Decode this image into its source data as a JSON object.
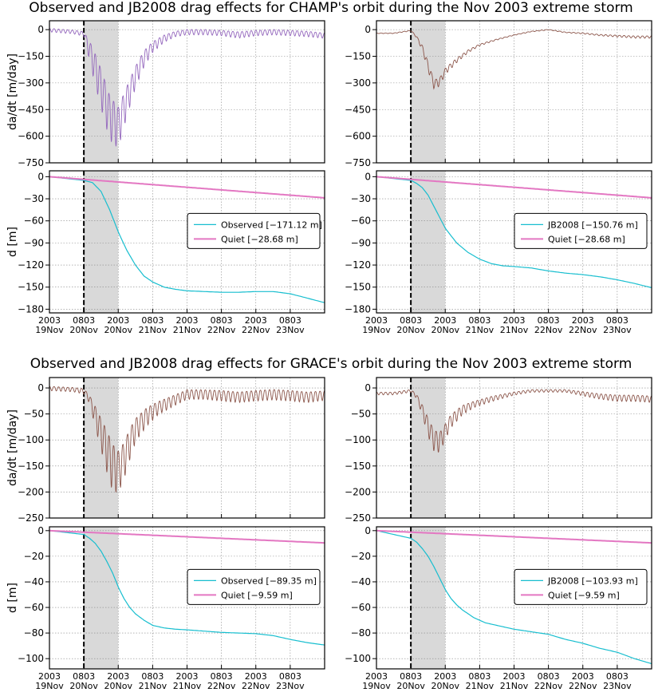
{
  "titles": {
    "top": "Observed and JB2008 drag effects for CHAMP's orbit during the Nov 2003 extreme storm",
    "bottom": "Observed and JB2008 drag effects for GRACE's orbit during the Nov 2003 extreme storm"
  },
  "ylabels": {
    "rate": "da/dt [m/day]",
    "dist": "d [m]"
  },
  "xticks": [
    {
      "l1": "2003",
      "l2": "19Nov"
    },
    {
      "l1": "0803",
      "l2": "20Nov"
    },
    {
      "l1": "2003",
      "l2": "20Nov"
    },
    {
      "l1": "0803",
      "l2": "21Nov"
    },
    {
      "l1": "2003",
      "l2": "21Nov"
    },
    {
      "l1": "0803",
      "l2": "22Nov"
    },
    {
      "l1": "2003",
      "l2": "22Nov"
    },
    {
      "l1": "0803",
      "l2": "23Nov"
    }
  ],
  "colors": {
    "observed_champ": "#9467bd",
    "model_rate": "#8c564b",
    "observed_grace": "#8c564b",
    "cyan": "#17becf",
    "quiet": "#e377c2",
    "shade": "#d9d9d9"
  },
  "chart_data": [
    {
      "id": "champ-obs-rate",
      "type": "line",
      "satellite": "CHAMP",
      "source": "Observed",
      "ylabel": "da/dt [m/day]",
      "ylim": [
        -750,
        50
      ],
      "yticks": [
        0,
        -150,
        -300,
        -450,
        -600,
        -750
      ],
      "x_hours": [
        0,
        4,
        8,
        12,
        15,
        18,
        21,
        24,
        27,
        30,
        33,
        36,
        40,
        44,
        48,
        54,
        60,
        66,
        72,
        78,
        84,
        90,
        96
      ],
      "y": [
        0,
        -5,
        -10,
        -20,
        -150,
        -300,
        -460,
        -520,
        -380,
        -250,
        -150,
        -90,
        -45,
        -20,
        -10,
        -10,
        -15,
        -25,
        -15,
        -10,
        -15,
        -20,
        -30
      ],
      "amp": [
        20,
        20,
        20,
        25,
        150,
        220,
        250,
        230,
        170,
        120,
        90,
        60,
        40,
        30,
        30,
        30,
        30,
        35,
        30,
        30,
        30,
        30,
        30
      ],
      "annotation": "Storm onset 0803 20Nov (dashed line), shaded 0803-2003 20Nov"
    },
    {
      "id": "champ-jb-rate",
      "type": "line",
      "satellite": "CHAMP",
      "source": "JB2008",
      "ylabel": "da/dt [m/day]",
      "ylim": [
        -750,
        50
      ],
      "yticks": [
        0,
        -150,
        -300,
        -450,
        -600,
        -750
      ],
      "x_hours": [
        0,
        6,
        12,
        14,
        16,
        18,
        20,
        22,
        24,
        28,
        32,
        36,
        42,
        48,
        54,
        60,
        66,
        72,
        78,
        84,
        90,
        96
      ],
      "y": [
        -20,
        -20,
        -5,
        -40,
        -100,
        -200,
        -300,
        -290,
        -230,
        -170,
        -120,
        -85,
        -55,
        -30,
        -10,
        0,
        -15,
        -20,
        -30,
        -35,
        -40,
        -40
      ],
      "amp": [
        3,
        3,
        5,
        10,
        30,
        50,
        50,
        45,
        35,
        25,
        15,
        10,
        6,
        4,
        4,
        4,
        4,
        6,
        8,
        10,
        12,
        12
      ]
    },
    {
      "id": "champ-obs-dist",
      "type": "line",
      "satellite": "CHAMP",
      "ylabel": "d [m]",
      "ylim": [
        -185,
        8
      ],
      "yticks": [
        0,
        -30,
        -60,
        -90,
        -120,
        -150,
        -180
      ],
      "series": [
        {
          "name": "Observed [−171.12 m]",
          "x_hours": [
            0,
            12,
            15,
            18,
            21,
            24,
            27,
            30,
            33,
            36,
            40,
            44,
            48,
            60,
            66,
            72,
            78,
            84,
            90,
            96
          ],
          "values": [
            0,
            -5,
            -8,
            -20,
            -45,
            -75,
            -100,
            -120,
            -135,
            -143,
            -150,
            -153,
            -155,
            -157,
            -157,
            -156,
            -156,
            -159,
            -165,
            -171.12
          ]
        },
        {
          "name": "Quiet [−28.68 m]",
          "x_hours": [
            0,
            96
          ],
          "values": [
            0,
            -28.68
          ]
        }
      ]
    },
    {
      "id": "champ-jb-dist",
      "type": "line",
      "satellite": "CHAMP",
      "ylabel": "d [m]",
      "ylim": [
        -185,
        8
      ],
      "yticks": [
        0,
        -30,
        -60,
        -90,
        -120,
        -150,
        -180
      ],
      "series": [
        {
          "name": "JB2008 [−150.76 m]",
          "x_hours": [
            0,
            12,
            14,
            16,
            18,
            20,
            22,
            24,
            28,
            32,
            36,
            40,
            44,
            48,
            54,
            60,
            66,
            72,
            78,
            84,
            90,
            96
          ],
          "values": [
            0,
            -5,
            -9,
            -15,
            -25,
            -40,
            -55,
            -70,
            -90,
            -103,
            -112,
            -118,
            -121,
            -122,
            -124,
            -128,
            -131,
            -133,
            -136,
            -140,
            -145,
            -150.76
          ]
        },
        {
          "name": "Quiet [−28.68 m]",
          "x_hours": [
            0,
            96
          ],
          "values": [
            0,
            -28.68
          ]
        }
      ]
    },
    {
      "id": "grace-obs-rate",
      "type": "line",
      "satellite": "GRACE",
      "source": "Observed",
      "ylabel": "da/dt [m/day]",
      "ylim": [
        -250,
        20
      ],
      "yticks": [
        0,
        -50,
        -100,
        -150,
        -200,
        -250
      ],
      "x_hours": [
        0,
        8,
        12,
        14,
        16,
        18,
        20,
        22,
        24,
        26,
        28,
        30,
        34,
        38,
        44,
        48,
        54,
        60,
        66,
        72,
        78,
        84,
        90,
        96
      ],
      "y": [
        0,
        -2,
        -5,
        -20,
        -50,
        -80,
        -110,
        -140,
        -150,
        -130,
        -100,
        -75,
        -50,
        -35,
        -20,
        -10,
        -10,
        -12,
        -15,
        -12,
        -10,
        -12,
        -15,
        -12
      ],
      "amp": [
        8,
        8,
        10,
        15,
        40,
        60,
        80,
        90,
        80,
        70,
        60,
        45,
        35,
        25,
        20,
        18,
        18,
        20,
        20,
        20,
        20,
        20,
        20,
        18
      ]
    },
    {
      "id": "grace-jb-rate",
      "type": "line",
      "satellite": "GRACE",
      "source": "JB2008",
      "ylabel": "da/dt [m/day]",
      "ylim": [
        -250,
        20
      ],
      "yticks": [
        0,
        -50,
        -100,
        -150,
        -200,
        -250
      ],
      "x_hours": [
        0,
        6,
        12,
        14,
        16,
        18,
        20,
        22,
        24,
        26,
        30,
        34,
        40,
        48,
        54,
        60,
        66,
        72,
        78,
        84,
        90,
        96
      ],
      "y": [
        -10,
        -10,
        -5,
        -15,
        -40,
        -70,
        -95,
        -100,
        -80,
        -60,
        -40,
        -30,
        -20,
        -10,
        -5,
        -5,
        -5,
        -10,
        -15,
        -18,
        -18,
        -20
      ],
      "amp": [
        5,
        5,
        5,
        8,
        20,
        35,
        40,
        38,
        30,
        25,
        18,
        12,
        10,
        6,
        5,
        5,
        5,
        8,
        10,
        12,
        12,
        12
      ]
    },
    {
      "id": "grace-obs-dist",
      "type": "line",
      "satellite": "GRACE",
      "ylabel": "d [m]",
      "ylim": [
        -108,
        3
      ],
      "yticks": [
        0,
        -20,
        -40,
        -60,
        -80,
        -100
      ],
      "series": [
        {
          "name": "Observed [−89.35 m]",
          "x_hours": [
            0,
            12,
            14,
            16,
            18,
            20,
            22,
            24,
            26,
            28,
            30,
            33,
            36,
            40,
            44,
            48,
            54,
            60,
            66,
            72,
            78,
            84,
            90,
            96
          ],
          "values": [
            0,
            -3,
            -6,
            -10,
            -16,
            -24,
            -33,
            -44,
            -53,
            -60,
            -65,
            -70,
            -74,
            -76,
            -77,
            -77.5,
            -78.5,
            -79.5,
            -80,
            -80.5,
            -82,
            -85,
            -87.5,
            -89.35
          ]
        },
        {
          "name": "Quiet [−9.59 m]",
          "x_hours": [
            0,
            96
          ],
          "values": [
            0,
            -9.59
          ]
        }
      ]
    },
    {
      "id": "grace-jb-dist",
      "type": "line",
      "satellite": "GRACE",
      "ylabel": "d [m]",
      "ylim": [
        -108,
        3
      ],
      "yticks": [
        0,
        -20,
        -40,
        -60,
        -80,
        -100
      ],
      "series": [
        {
          "name": "JB2008 [−103.93 m]",
          "x_hours": [
            0,
            6,
            12,
            14,
            16,
            18,
            20,
            22,
            24,
            26,
            28,
            30,
            34,
            38,
            44,
            48,
            54,
            60,
            66,
            72,
            78,
            84,
            90,
            96
          ],
          "values": [
            0,
            -3,
            -6,
            -9,
            -14,
            -20,
            -28,
            -37,
            -46,
            -53,
            -58,
            -62,
            -68,
            -72,
            -75,
            -77,
            -79,
            -81,
            -85,
            -88,
            -92,
            -95,
            -100,
            -103.93
          ]
        },
        {
          "name": "Quiet [−9.59 m]",
          "x_hours": [
            0,
            96
          ],
          "values": [
            0,
            -9.59
          ]
        }
      ]
    }
  ]
}
